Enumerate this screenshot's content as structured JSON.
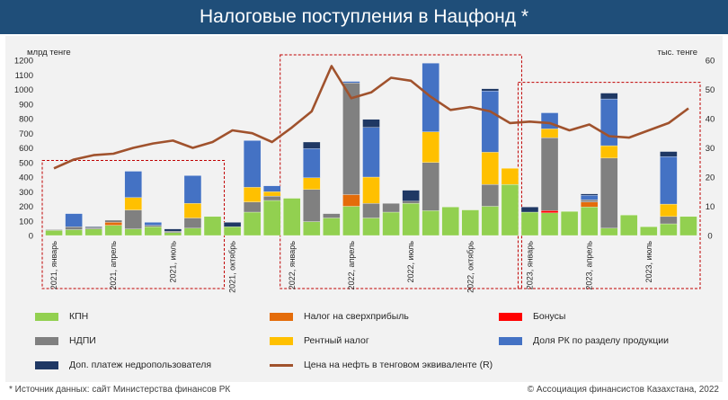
{
  "header": {
    "title": "Налоговые поступления в Нацфонд *"
  },
  "footer": {
    "source": "* Источник данных: сайт Министерства финансов РК",
    "copyright": "© Ассоциация финансистов Казахстана, 2022"
  },
  "colors": {
    "banner": "#1f4e79",
    "kpn": "#92d050",
    "superprofit": "#e46c0a",
    "bonus": "#ff0000",
    "ndpi": "#808080",
    "rent": "#ffc000",
    "share": "#4472c4",
    "extra": "#1f3864",
    "oil": "#a0522d",
    "highlight_box": "#c00000"
  },
  "chart_data": {
    "type": "bar",
    "stacked": true,
    "ylabel": "млрд тенге",
    "y2label": "тыс. тенге",
    "ylim": [
      0,
      1200
    ],
    "y2lim": [
      0,
      60
    ],
    "yticks": [
      0,
      100,
      200,
      300,
      400,
      500,
      600,
      700,
      800,
      900,
      1000,
      1100,
      1200
    ],
    "y2ticks": [
      0,
      10,
      20,
      30,
      40,
      50,
      60
    ],
    "grid": false,
    "legend_position": "bottom",
    "categories": [
      "2021, январь",
      "",
      "",
      "2021, апрель",
      "",
      "",
      "2021, июль",
      "",
      "",
      "2021, октябрь",
      "",
      "",
      "2022, январь",
      "",
      "",
      "2022, апрель",
      "",
      "",
      "2022, июль",
      "",
      "",
      "2022, октябрь",
      "",
      "",
      "2023, январь",
      "",
      "",
      "2023, апрель",
      "",
      "",
      "2023, июль",
      "",
      ""
    ],
    "series": [
      {
        "name": "КПН",
        "color_key": "kpn",
        "values": [
          35,
          40,
          45,
          70,
          45,
          60,
          20,
          50,
          130,
          60,
          160,
          240,
          255,
          95,
          120,
          200,
          120,
          160,
          220,
          170,
          195,
          175,
          200,
          350,
          160,
          155,
          165,
          195,
          50,
          140,
          60,
          80,
          130
        ]
      },
      {
        "name": "Налог на сверхприбыль",
        "color_key": "superprofit",
        "values": [
          0,
          0,
          0,
          20,
          0,
          0,
          0,
          0,
          0,
          0,
          0,
          0,
          0,
          0,
          0,
          80,
          0,
          0,
          0,
          0,
          0,
          0,
          0,
          0,
          0,
          0,
          0,
          35,
          0,
          0,
          0,
          0,
          0
        ]
      },
      {
        "name": "Бонусы",
        "color_key": "bonus",
        "values": [
          0,
          0,
          0,
          0,
          0,
          0,
          0,
          0,
          0,
          0,
          0,
          0,
          0,
          0,
          0,
          0,
          0,
          0,
          0,
          0,
          0,
          0,
          0,
          0,
          0,
          15,
          0,
          0,
          0,
          0,
          0,
          0,
          0
        ]
      },
      {
        "name": "НДПИ",
        "color_key": "ndpi",
        "values": [
          5,
          20,
          10,
          15,
          130,
          10,
          10,
          70,
          0,
          0,
          70,
          30,
          0,
          220,
          30,
          765,
          100,
          60,
          15,
          330,
          0,
          0,
          150,
          0,
          0,
          500,
          0,
          15,
          480,
          0,
          0,
          50,
          0
        ]
      },
      {
        "name": "Рентный налог",
        "color_key": "rent",
        "values": [
          0,
          0,
          0,
          0,
          85,
          0,
          0,
          100,
          0,
          0,
          100,
          30,
          0,
          80,
          0,
          0,
          180,
          0,
          0,
          210,
          0,
          0,
          220,
          110,
          0,
          60,
          0,
          0,
          85,
          0,
          0,
          85,
          0
        ]
      },
      {
        "name": "Доля РК по разделу продукции",
        "color_key": "share",
        "values": [
          0,
          90,
          0,
          0,
          180,
          20,
          0,
          190,
          0,
          0,
          320,
          40,
          0,
          200,
          0,
          10,
          340,
          0,
          0,
          470,
          0,
          0,
          420,
          0,
          0,
          110,
          0,
          30,
          320,
          0,
          0,
          325,
          0
        ]
      },
      {
        "name": "Доп. платеж недропользователя",
        "color_key": "extra",
        "values": [
          0,
          0,
          5,
          0,
          0,
          0,
          15,
          0,
          0,
          30,
          0,
          0,
          0,
          45,
          0,
          0,
          55,
          0,
          75,
          0,
          0,
          0,
          15,
          0,
          35,
          0,
          0,
          10,
          40,
          0,
          0,
          35,
          0
        ]
      }
    ],
    "line": {
      "name": "Цена на нефть в тенговом эквиваленте (R)",
      "axis": "right",
      "values": [
        23,
        26,
        27.5,
        28,
        30,
        31.5,
        32.5,
        30,
        32,
        36,
        35,
        32,
        37,
        42.5,
        58,
        47,
        49,
        54,
        53,
        47.5,
        43,
        44,
        42.5,
        38.5,
        39,
        38.5,
        36,
        38,
        34,
        33.5,
        36,
        38.5,
        43.5
      ]
    },
    "highlight_groups": [
      [
        0,
        8
      ],
      [
        12,
        23
      ],
      [
        24,
        32
      ]
    ]
  },
  "legend": {
    "kpn": "КПН",
    "superprofit": "Налог на сверхприбыль",
    "bonus": "Бонусы",
    "ndpi": "НДПИ",
    "rent": "Рентный налог",
    "share": "Доля РК по разделу продукции",
    "extra": "Доп. платеж недропользователя",
    "oil": "Цена на нефть в тенговом эквиваленте (R)"
  }
}
